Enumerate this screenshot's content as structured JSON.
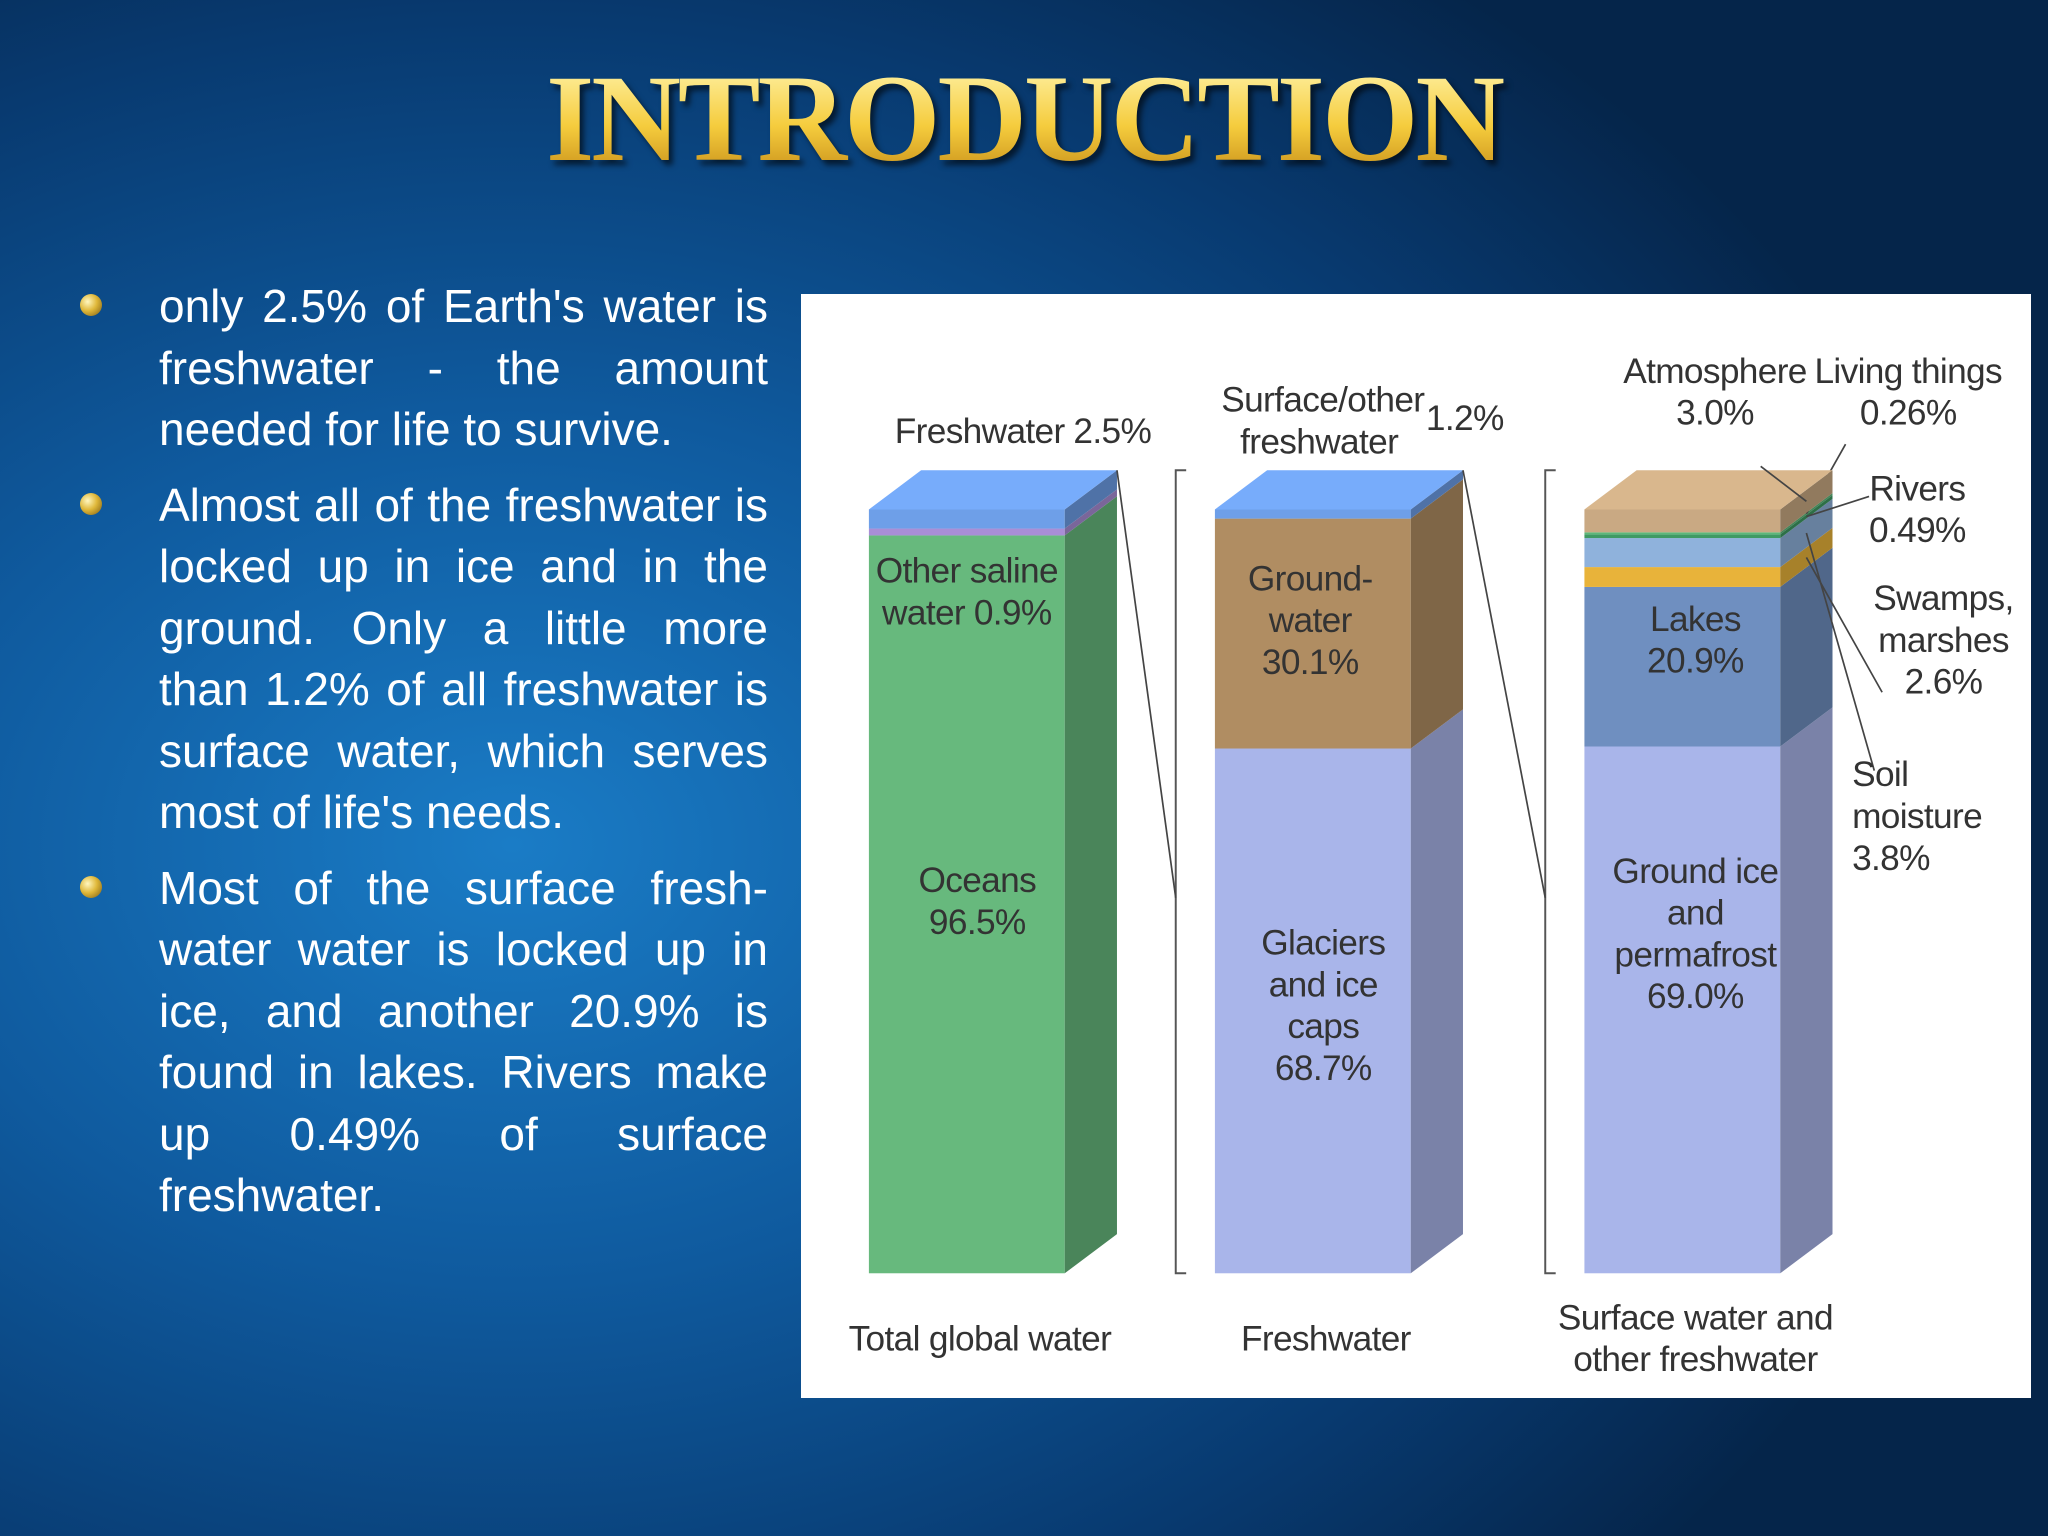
{
  "title": "INTRODUCTION",
  "bullets": [
    "only 2.5% of Earth's water is freshwater - the amount needed for life to survive.",
    "Almost all of the freshwater is locked up in ice and in the ground. Only a little more than 1.2% of all freshwater is surface water, which serves most of life's needs.",
    "Most of the surface fresh-water water is locked up in ice, and another 20.9% is found in lakes. Rivers make up 0.49% of surface freshwater."
  ],
  "chart_data": {
    "type": "stacked-bar",
    "stacks": [
      {
        "category": "Total global water",
        "segments": [
          {
            "name": "Oceans",
            "value": 96.5,
            "value_label": "96.5%",
            "color": "#67b97d"
          },
          {
            "name": "Other saline water",
            "value": 0.9,
            "value_label": "0.9%",
            "color": "#a98ed6"
          },
          {
            "name": "Freshwater",
            "value": 2.5,
            "value_label": "2.5%",
            "color": "#6e9fe8"
          }
        ]
      },
      {
        "category": "Freshwater",
        "segments": [
          {
            "name": "Glaciers and ice caps",
            "value": 68.7,
            "value_label": "68.7%",
            "color": "#a9b5ea"
          },
          {
            "name": "Ground-water",
            "value": 30.1,
            "value_label": "30.1%",
            "color": "#b08d62"
          },
          {
            "name": "Surface/other freshwater",
            "value": 1.2,
            "value_label": "1.2%",
            "color": "#6e9fe8"
          }
        ]
      },
      {
        "category": "Surface water and other freshwater",
        "segments": [
          {
            "name": "Ground ice and permafrost",
            "value": 69.0,
            "value_label": "69.0%",
            "color": "#a9b5ea"
          },
          {
            "name": "Lakes",
            "value": 20.9,
            "value_label": "20.9%",
            "color": "#6f8fc0"
          },
          {
            "name": "Swamps, marshes",
            "value": 2.6,
            "value_label": "2.6%",
            "color": "#e8b33a"
          },
          {
            "name": "Soil moisture",
            "value": 3.8,
            "value_label": "3.8%",
            "color": "#8fb2dc"
          },
          {
            "name": "Rivers",
            "value": 0.49,
            "value_label": "0.49%",
            "color": "#3f9a63"
          },
          {
            "name": "Living things",
            "value": 0.26,
            "value_label": "0.26%",
            "color": "#5cb87a"
          },
          {
            "name": "Atmosphere",
            "value": 3.0,
            "value_label": "3.0%",
            "color": "#c9a983"
          }
        ]
      }
    ]
  }
}
